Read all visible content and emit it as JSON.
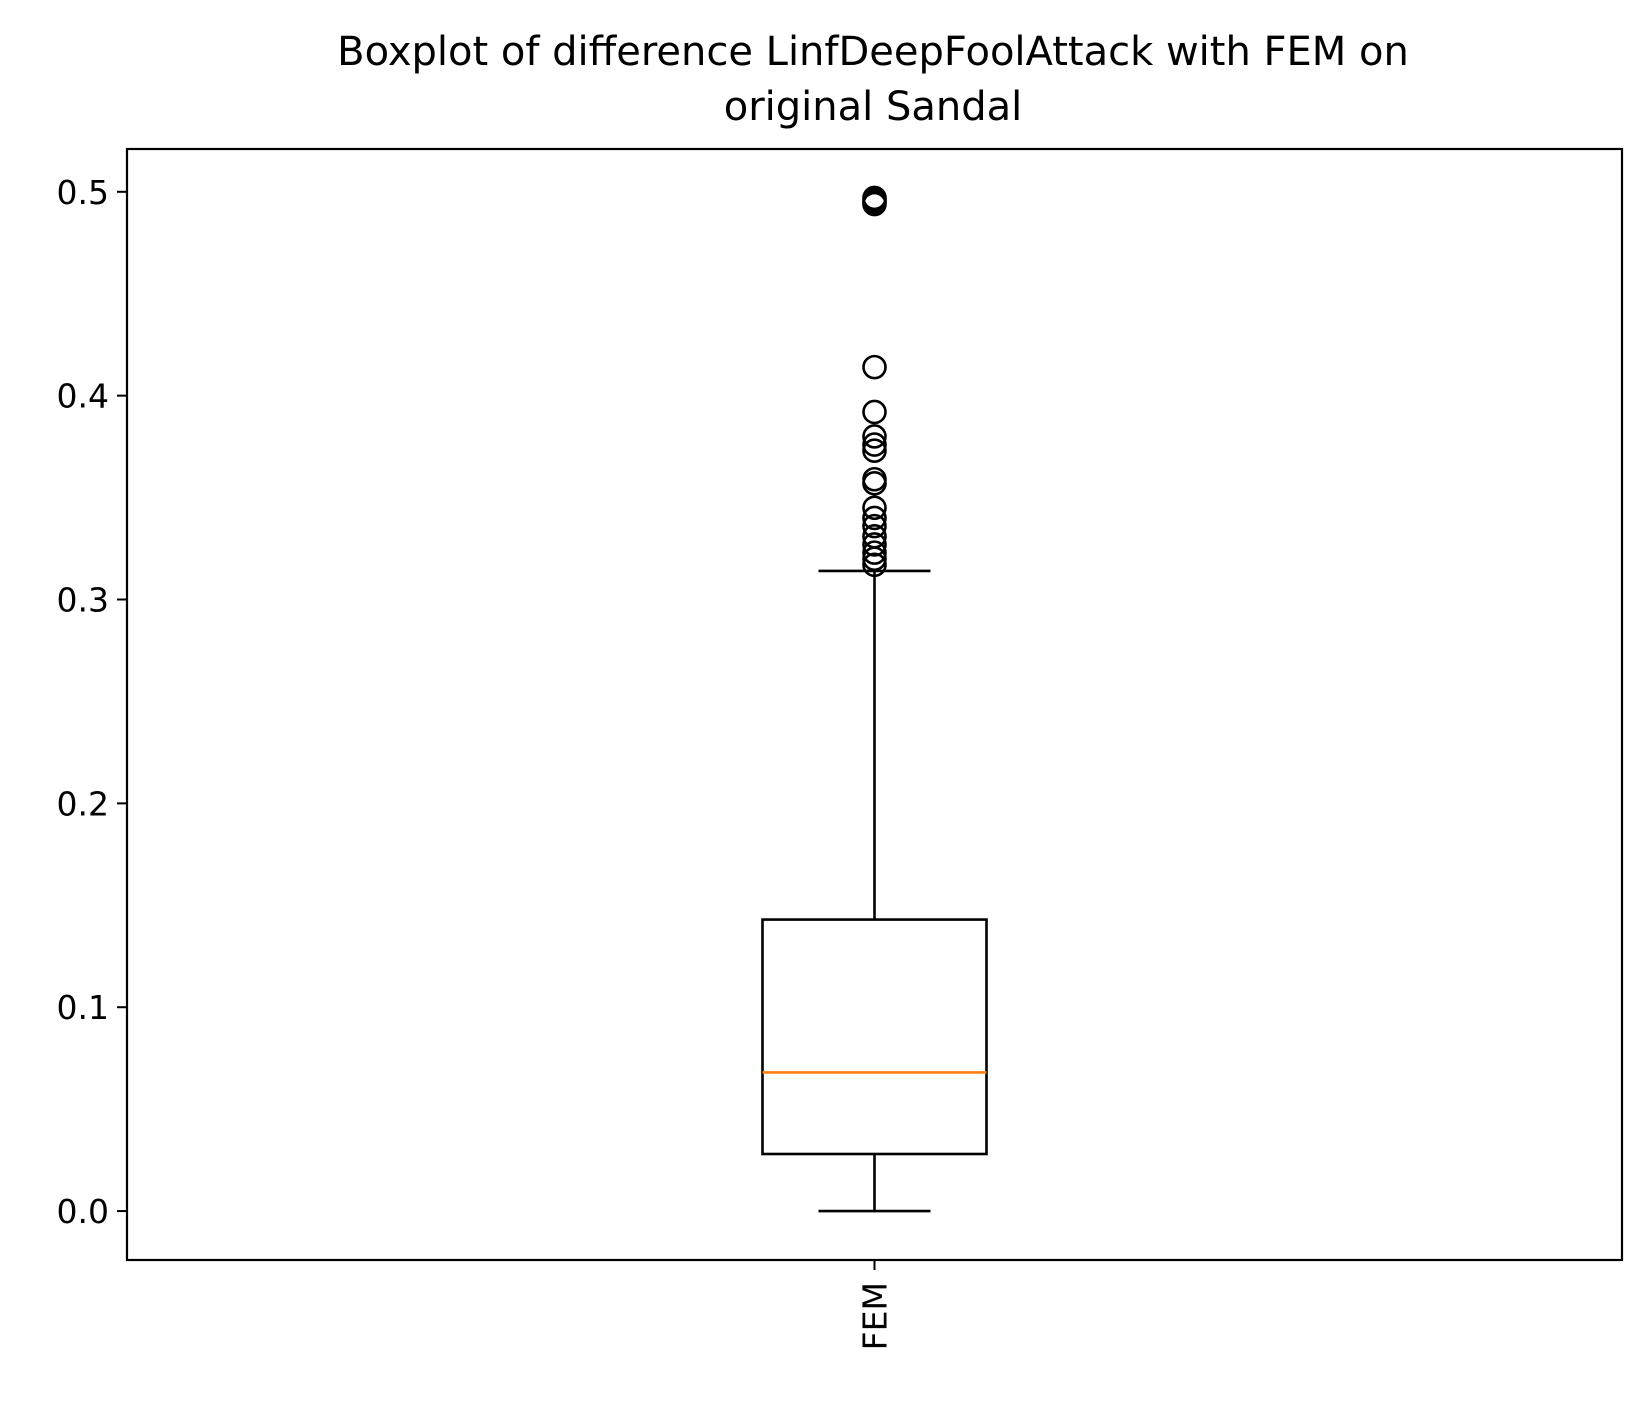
{
  "chart_data": {
    "type": "boxplot",
    "title_lines": [
      "Boxplot of difference LinfDeepFoolAttack with FEM on",
      "original Sandal"
    ],
    "xlabel": "",
    "ylabel": "",
    "categories": [
      "FEM"
    ],
    "y_ticks": [
      "0.0",
      "0.1",
      "0.2",
      "0.3",
      "0.4",
      "0.5"
    ],
    "y_tick_values": [
      0.0,
      0.1,
      0.2,
      0.3,
      0.4,
      0.5
    ],
    "ylim": [
      -0.024,
      0.521
    ],
    "grid": false,
    "boxes": [
      {
        "category": "FEM",
        "whisker_low": 0.0,
        "q1": 0.028,
        "median": 0.068,
        "q3": 0.143,
        "whisker_high": 0.314,
        "outliers": [
          0.317,
          0.32,
          0.323,
          0.327,
          0.331,
          0.336,
          0.34,
          0.345,
          0.357,
          0.359,
          0.373,
          0.376,
          0.38,
          0.392,
          0.414,
          0.494,
          0.495,
          0.496,
          0.497
        ]
      }
    ],
    "colors": {
      "box": "#000000",
      "median": "#ff7f0e",
      "outlier_edge": "#000000",
      "axes": "#000000"
    }
  }
}
